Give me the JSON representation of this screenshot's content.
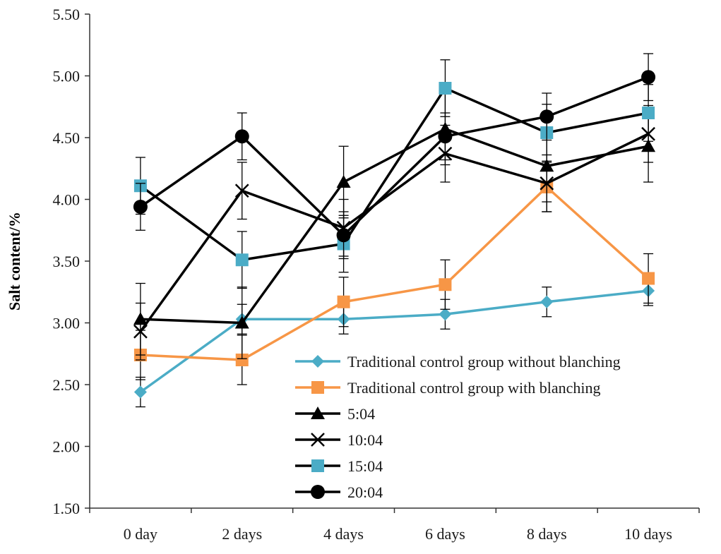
{
  "chart_data": {
    "type": "line",
    "title": "",
    "xlabel": "",
    "ylabel": "Salt content/%",
    "categories": [
      "0 day",
      "2 days",
      "4 days",
      "6 days",
      "8 days",
      "10 days"
    ],
    "ylim": [
      1.5,
      5.5
    ],
    "yticks": [
      "1.50",
      "2.00",
      "2.50",
      "3.00",
      "3.50",
      "4.00",
      "4.50",
      "5.00",
      "5.50"
    ],
    "legend_position": "lower-right",
    "series": [
      {
        "name": "Traditional control group without blanching",
        "color": "#4bacc6",
        "marker": "diamond",
        "values": [
          2.44,
          3.03,
          3.03,
          3.07,
          3.17,
          3.26
        ],
        "errors": [
          0.12,
          0.12,
          0.12,
          0.12,
          0.12,
          0.12
        ]
      },
      {
        "name": "Traditional control group with blanching",
        "color": "#f79646",
        "marker": "square",
        "values": [
          2.74,
          2.7,
          3.17,
          3.31,
          4.1,
          3.36
        ],
        "errors": [
          0.2,
          0.2,
          0.2,
          0.2,
          0.2,
          0.2
        ]
      },
      {
        "name": "5:04",
        "color": "#000000",
        "marker": "triangle",
        "values": [
          3.03,
          3.0,
          4.14,
          4.57,
          4.27,
          4.43
        ],
        "errors": [
          0.29,
          0.29,
          0.29,
          0.29,
          0.29,
          0.29
        ]
      },
      {
        "name": "10:04",
        "color": "#000000",
        "marker": "x",
        "values": [
          2.93,
          4.07,
          3.77,
          4.37,
          4.13,
          4.53
        ],
        "errors": [
          0.23,
          0.23,
          0.23,
          0.23,
          0.23,
          0.23
        ]
      },
      {
        "name": "15:04",
        "color": "#4bacc6",
        "line_color": "#000000",
        "marker": "square",
        "values": [
          4.11,
          3.51,
          3.64,
          4.9,
          4.54,
          4.7
        ],
        "errors": [
          0.23,
          0.23,
          0.23,
          0.23,
          0.23,
          0.23
        ]
      },
      {
        "name": "20:04",
        "color": "#000000",
        "marker": "circle",
        "values": [
          3.94,
          4.51,
          3.71,
          4.51,
          4.67,
          4.99
        ],
        "errors": [
          0.19,
          0.19,
          0.19,
          0.19,
          0.19,
          0.19
        ]
      }
    ]
  }
}
